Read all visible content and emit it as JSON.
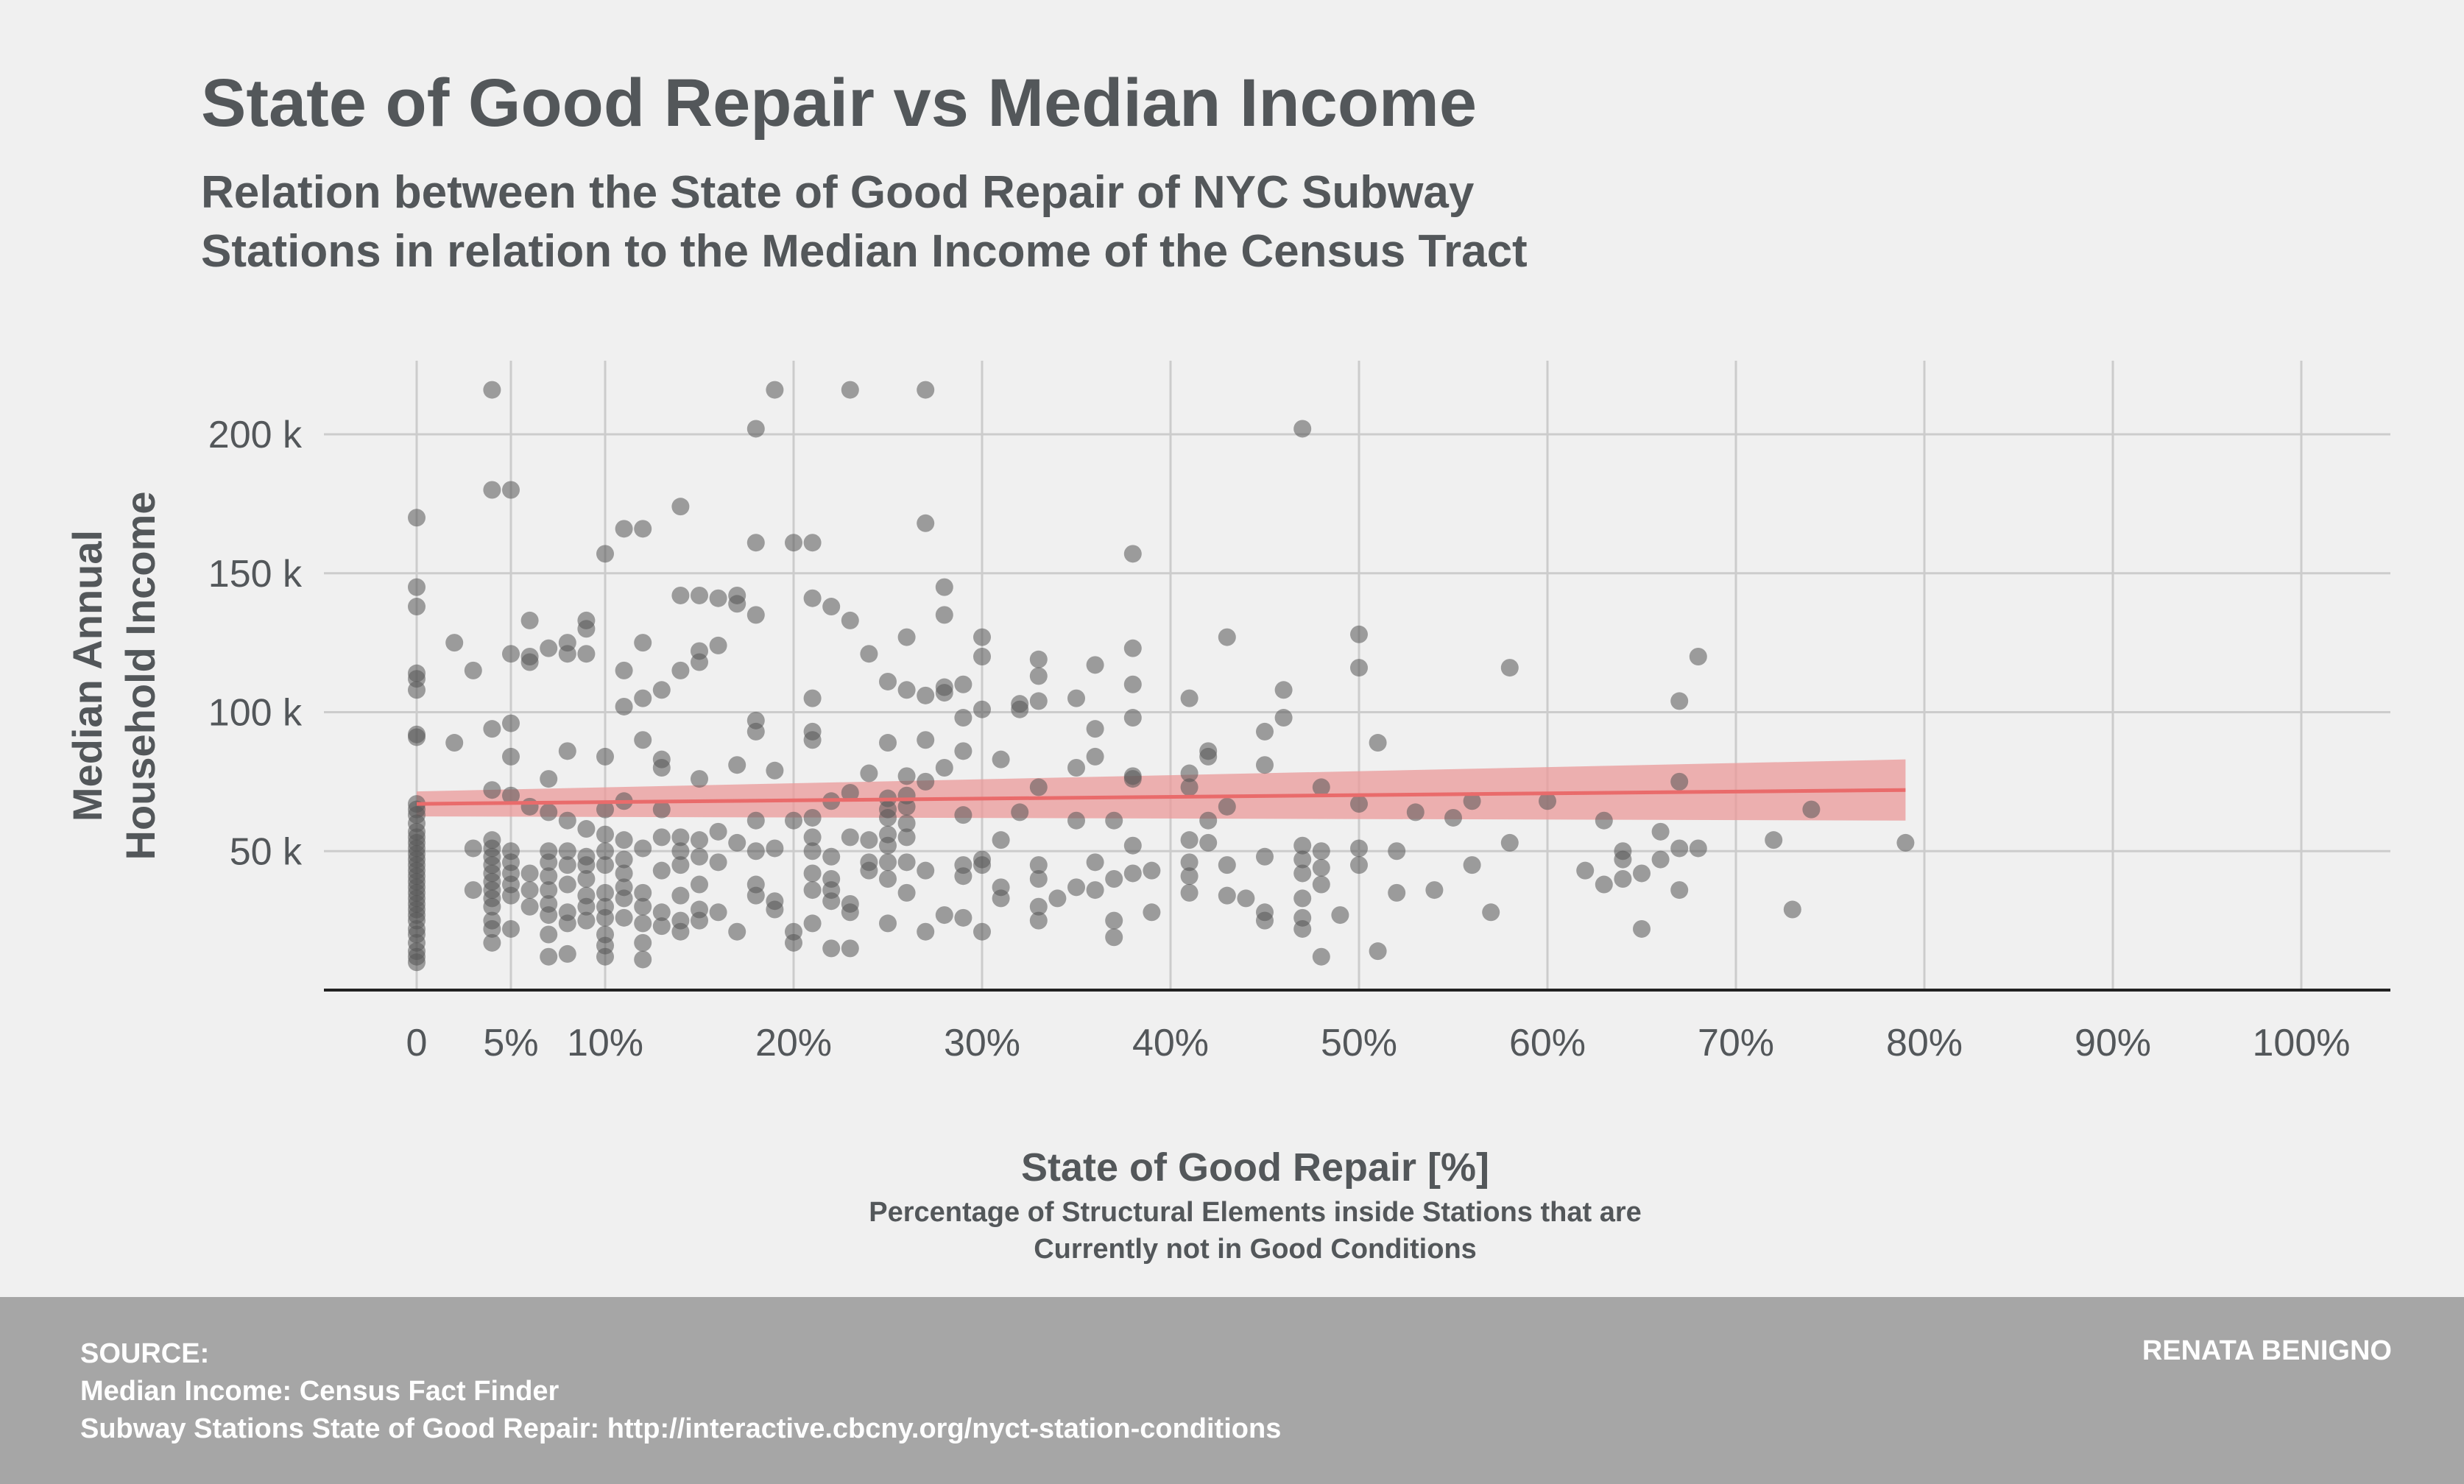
{
  "chart_data": {
    "type": "scatter",
    "title": "State of Good Repair vs Median Income",
    "subtitle_lines": [
      "Relation between the State of Good Repair of NYC Subway",
      "Stations in relation to the Median Income of the Census Tract"
    ],
    "xlabel": "State of Good Repair [%]",
    "xlabel_sub_lines": [
      "Percentage of Structural Elements inside Stations that are",
      "Currently not in Good Conditions"
    ],
    "ylabel_lines": [
      "Median Annual",
      "Household Income"
    ],
    "x_ticks": [
      {
        "value": 0,
        "label": "0"
      },
      {
        "value": 5,
        "label": "5%"
      },
      {
        "value": 10,
        "label": "10%"
      },
      {
        "value": 20,
        "label": "20%"
      },
      {
        "value": 30,
        "label": "30%"
      },
      {
        "value": 40,
        "label": "40%"
      },
      {
        "value": 50,
        "label": "50%"
      },
      {
        "value": 60,
        "label": "60%"
      },
      {
        "value": 70,
        "label": "70%"
      },
      {
        "value": 80,
        "label": "80%"
      },
      {
        "value": 90,
        "label": "90%"
      },
      {
        "value": 100,
        "label": "100%"
      }
    ],
    "y_ticks": [
      {
        "value": 50000,
        "label": "50 k"
      },
      {
        "value": 100000,
        "label": "100 k"
      },
      {
        "value": 150000,
        "label": "150 k"
      },
      {
        "value": 200000,
        "label": "200 k"
      }
    ],
    "xlim": [
      -5,
      105
    ],
    "ylim": [
      0,
      225000
    ],
    "grid": true,
    "colors": {
      "point": "#555555",
      "trend": "#e96b6b",
      "band": "#eb9a9a",
      "grid": "#cccccc",
      "axis": "#222222"
    },
    "trend": {
      "x": [
        0,
        79
      ],
      "y": [
        67000,
        72000
      ]
    },
    "confidence_band": {
      "x": [
        0,
        79
      ],
      "lower": [
        62500,
        61000
      ],
      "upper": [
        71500,
        83000
      ]
    },
    "points": [
      [
        0,
        170000
      ],
      [
        0,
        145000
      ],
      [
        0,
        138000
      ],
      [
        0,
        114000
      ],
      [
        0,
        112000
      ],
      [
        0,
        108000
      ],
      [
        0,
        92000
      ],
      [
        0,
        91000
      ],
      [
        0,
        67000
      ],
      [
        0,
        65000
      ],
      [
        0,
        63000
      ],
      [
        0,
        60000
      ],
      [
        0,
        57000
      ],
      [
        0,
        55000
      ],
      [
        0,
        53000
      ],
      [
        0,
        51000
      ],
      [
        0,
        49000
      ],
      [
        0,
        47000
      ],
      [
        0,
        45000
      ],
      [
        0,
        43000
      ],
      [
        0,
        41000
      ],
      [
        0,
        39000
      ],
      [
        0,
        37000
      ],
      [
        0,
        35000
      ],
      [
        0,
        33000
      ],
      [
        0,
        31000
      ],
      [
        0,
        29000
      ],
      [
        0,
        27000
      ],
      [
        0,
        25000
      ],
      [
        0,
        22000
      ],
      [
        0,
        20000
      ],
      [
        0,
        17000
      ],
      [
        0,
        14000
      ],
      [
        0,
        12000
      ],
      [
        0,
        10000
      ],
      [
        2,
        125000
      ],
      [
        2,
        89000
      ],
      [
        3,
        115000
      ],
      [
        3,
        51000
      ],
      [
        3,
        36000
      ],
      [
        4,
        216000
      ],
      [
        4,
        180000
      ],
      [
        4,
        94000
      ],
      [
        4,
        72000
      ],
      [
        4,
        54000
      ],
      [
        4,
        51000
      ],
      [
        4,
        48000
      ],
      [
        4,
        45000
      ],
      [
        4,
        42000
      ],
      [
        4,
        39000
      ],
      [
        4,
        36000
      ],
      [
        4,
        33000
      ],
      [
        4,
        30000
      ],
      [
        4,
        25000
      ],
      [
        4,
        22000
      ],
      [
        4,
        17000
      ],
      [
        5,
        180000
      ],
      [
        5,
        121000
      ],
      [
        5,
        96000
      ],
      [
        5,
        84000
      ],
      [
        5,
        70000
      ],
      [
        5,
        50000
      ],
      [
        5,
        46000
      ],
      [
        5,
        42000
      ],
      [
        5,
        38000
      ],
      [
        5,
        34000
      ],
      [
        5,
        22000
      ],
      [
        6,
        133000
      ],
      [
        6,
        120000
      ],
      [
        6,
        118000
      ],
      [
        6,
        66000
      ],
      [
        6,
        42000
      ],
      [
        6,
        36000
      ],
      [
        6,
        30000
      ],
      [
        7,
        123000
      ],
      [
        7,
        76000
      ],
      [
        7,
        64000
      ],
      [
        7,
        50000
      ],
      [
        7,
        46000
      ],
      [
        7,
        41000
      ],
      [
        7,
        36000
      ],
      [
        7,
        31000
      ],
      [
        7,
        27000
      ],
      [
        7,
        20000
      ],
      [
        7,
        12000
      ],
      [
        8,
        125000
      ],
      [
        8,
        121000
      ],
      [
        8,
        86000
      ],
      [
        8,
        61000
      ],
      [
        8,
        50000
      ],
      [
        8,
        45000
      ],
      [
        8,
        38000
      ],
      [
        8,
        28000
      ],
      [
        8,
        24000
      ],
      [
        8,
        13000
      ],
      [
        9,
        133000
      ],
      [
        9,
        130000
      ],
      [
        9,
        121000
      ],
      [
        9,
        58000
      ],
      [
        9,
        48000
      ],
      [
        9,
        45000
      ],
      [
        9,
        40000
      ],
      [
        9,
        34000
      ],
      [
        9,
        30000
      ],
      [
        9,
        25000
      ],
      [
        10,
        157000
      ],
      [
        10,
        84000
      ],
      [
        10,
        65000
      ],
      [
        10,
        56000
      ],
      [
        10,
        50000
      ],
      [
        10,
        45000
      ],
      [
        10,
        35000
      ],
      [
        10,
        30000
      ],
      [
        10,
        26000
      ],
      [
        10,
        20000
      ],
      [
        10,
        16000
      ],
      [
        10,
        12000
      ],
      [
        11,
        166000
      ],
      [
        11,
        115000
      ],
      [
        11,
        102000
      ],
      [
        11,
        68000
      ],
      [
        11,
        54000
      ],
      [
        11,
        47000
      ],
      [
        11,
        42000
      ],
      [
        11,
        37000
      ],
      [
        11,
        33000
      ],
      [
        11,
        26000
      ],
      [
        12,
        166000
      ],
      [
        12,
        125000
      ],
      [
        12,
        105000
      ],
      [
        12,
        90000
      ],
      [
        12,
        51000
      ],
      [
        12,
        35000
      ],
      [
        12,
        30000
      ],
      [
        12,
        24000
      ],
      [
        12,
        17000
      ],
      [
        12,
        11000
      ],
      [
        13,
        108000
      ],
      [
        13,
        83000
      ],
      [
        13,
        80000
      ],
      [
        13,
        65000
      ],
      [
        13,
        55000
      ],
      [
        13,
        43000
      ],
      [
        13,
        28000
      ],
      [
        13,
        23000
      ],
      [
        14,
        174000
      ],
      [
        14,
        142000
      ],
      [
        14,
        115000
      ],
      [
        14,
        55000
      ],
      [
        14,
        50000
      ],
      [
        14,
        45000
      ],
      [
        14,
        34000
      ],
      [
        14,
        25000
      ],
      [
        14,
        21000
      ],
      [
        15,
        142000
      ],
      [
        15,
        122000
      ],
      [
        15,
        118000
      ],
      [
        15,
        76000
      ],
      [
        15,
        54000
      ],
      [
        15,
        48000
      ],
      [
        15,
        38000
      ],
      [
        15,
        29000
      ],
      [
        15,
        25000
      ],
      [
        16,
        141000
      ],
      [
        16,
        124000
      ],
      [
        16,
        57000
      ],
      [
        16,
        46000
      ],
      [
        16,
        28000
      ],
      [
        17,
        142000
      ],
      [
        17,
        139000
      ],
      [
        17,
        81000
      ],
      [
        17,
        53000
      ],
      [
        17,
        21000
      ],
      [
        18,
        202000
      ],
      [
        18,
        161000
      ],
      [
        18,
        135000
      ],
      [
        18,
        97000
      ],
      [
        18,
        93000
      ],
      [
        18,
        61000
      ],
      [
        18,
        50000
      ],
      [
        18,
        38000
      ],
      [
        18,
        34000
      ],
      [
        19,
        216000
      ],
      [
        19,
        79000
      ],
      [
        19,
        51000
      ],
      [
        19,
        32000
      ],
      [
        19,
        29000
      ],
      [
        20,
        161000
      ],
      [
        20,
        61000
      ],
      [
        20,
        21000
      ],
      [
        20,
        17000
      ],
      [
        21,
        161000
      ],
      [
        21,
        141000
      ],
      [
        21,
        105000
      ],
      [
        21,
        93000
      ],
      [
        21,
        90000
      ],
      [
        21,
        62000
      ],
      [
        21,
        55000
      ],
      [
        21,
        50000
      ],
      [
        21,
        42000
      ],
      [
        21,
        36000
      ],
      [
        21,
        24000
      ],
      [
        22,
        138000
      ],
      [
        22,
        68000
      ],
      [
        22,
        48000
      ],
      [
        22,
        40000
      ],
      [
        22,
        36000
      ],
      [
        22,
        32000
      ],
      [
        22,
        15000
      ],
      [
        23,
        216000
      ],
      [
        23,
        133000
      ],
      [
        23,
        71000
      ],
      [
        23,
        55000
      ],
      [
        23,
        31000
      ],
      [
        23,
        28000
      ],
      [
        23,
        15000
      ],
      [
        24,
        121000
      ],
      [
        24,
        78000
      ],
      [
        24,
        54000
      ],
      [
        24,
        46000
      ],
      [
        24,
        43000
      ],
      [
        25,
        111000
      ],
      [
        25,
        89000
      ],
      [
        25,
        69000
      ],
      [
        25,
        65000
      ],
      [
        25,
        62000
      ],
      [
        25,
        56000
      ],
      [
        25,
        52000
      ],
      [
        25,
        46000
      ],
      [
        25,
        40000
      ],
      [
        25,
        24000
      ],
      [
        26,
        127000
      ],
      [
        26,
        108000
      ],
      [
        26,
        77000
      ],
      [
        26,
        70000
      ],
      [
        26,
        66000
      ],
      [
        26,
        60000
      ],
      [
        26,
        55000
      ],
      [
        26,
        46000
      ],
      [
        26,
        35000
      ],
      [
        27,
        216000
      ],
      [
        27,
        168000
      ],
      [
        27,
        106000
      ],
      [
        27,
        90000
      ],
      [
        27,
        75000
      ],
      [
        27,
        43000
      ],
      [
        27,
        21000
      ],
      [
        28,
        145000
      ],
      [
        28,
        135000
      ],
      [
        28,
        109000
      ],
      [
        28,
        107000
      ],
      [
        28,
        80000
      ],
      [
        28,
        27000
      ],
      [
        29,
        110000
      ],
      [
        29,
        98000
      ],
      [
        29,
        86000
      ],
      [
        29,
        63000
      ],
      [
        29,
        45000
      ],
      [
        29,
        41000
      ],
      [
        29,
        26000
      ],
      [
        30,
        127000
      ],
      [
        30,
        120000
      ],
      [
        30,
        101000
      ],
      [
        30,
        47000
      ],
      [
        30,
        45000
      ],
      [
        30,
        21000
      ],
      [
        31,
        83000
      ],
      [
        31,
        54000
      ],
      [
        31,
        37000
      ],
      [
        31,
        33000
      ],
      [
        32,
        103000
      ],
      [
        32,
        101000
      ],
      [
        32,
        64000
      ],
      [
        33,
        119000
      ],
      [
        33,
        113000
      ],
      [
        33,
        104000
      ],
      [
        33,
        73000
      ],
      [
        33,
        45000
      ],
      [
        33,
        40000
      ],
      [
        33,
        30000
      ],
      [
        33,
        25000
      ],
      [
        34,
        33000
      ],
      [
        35,
        105000
      ],
      [
        35,
        80000
      ],
      [
        35,
        61000
      ],
      [
        35,
        37000
      ],
      [
        36,
        117000
      ],
      [
        36,
        94000
      ],
      [
        36,
        84000
      ],
      [
        36,
        46000
      ],
      [
        36,
        36000
      ],
      [
        37,
        61000
      ],
      [
        37,
        40000
      ],
      [
        37,
        25000
      ],
      [
        37,
        19000
      ],
      [
        38,
        157000
      ],
      [
        38,
        123000
      ],
      [
        38,
        110000
      ],
      [
        38,
        98000
      ],
      [
        38,
        77000
      ],
      [
        38,
        76000
      ],
      [
        38,
        52000
      ],
      [
        38,
        42000
      ],
      [
        39,
        43000
      ],
      [
        39,
        28000
      ],
      [
        41,
        105000
      ],
      [
        41,
        78000
      ],
      [
        41,
        73000
      ],
      [
        41,
        54000
      ],
      [
        41,
        46000
      ],
      [
        41,
        41000
      ],
      [
        41,
        35000
      ],
      [
        42,
        86000
      ],
      [
        42,
        84000
      ],
      [
        42,
        61000
      ],
      [
        42,
        53000
      ],
      [
        43,
        127000
      ],
      [
        43,
        66000
      ],
      [
        43,
        45000
      ],
      [
        43,
        34000
      ],
      [
        44,
        33000
      ],
      [
        45,
        93000
      ],
      [
        45,
        81000
      ],
      [
        45,
        48000
      ],
      [
        45,
        28000
      ],
      [
        45,
        25000
      ],
      [
        46,
        108000
      ],
      [
        46,
        98000
      ],
      [
        47,
        202000
      ],
      [
        47,
        52000
      ],
      [
        47,
        47000
      ],
      [
        47,
        42000
      ],
      [
        47,
        33000
      ],
      [
        47,
        26000
      ],
      [
        47,
        22000
      ],
      [
        48,
        73000
      ],
      [
        48,
        50000
      ],
      [
        48,
        44000
      ],
      [
        48,
        38000
      ],
      [
        48,
        12000
      ],
      [
        49,
        27000
      ],
      [
        50,
        128000
      ],
      [
        50,
        116000
      ],
      [
        50,
        67000
      ],
      [
        50,
        51000
      ],
      [
        50,
        45000
      ],
      [
        51,
        89000
      ],
      [
        51,
        14000
      ],
      [
        52,
        50000
      ],
      [
        52,
        35000
      ],
      [
        53,
        64000
      ],
      [
        54,
        36000
      ],
      [
        55,
        62000
      ],
      [
        56,
        68000
      ],
      [
        56,
        45000
      ],
      [
        57,
        28000
      ],
      [
        58,
        116000
      ],
      [
        58,
        53000
      ],
      [
        60,
        68000
      ],
      [
        62,
        43000
      ],
      [
        63,
        61000
      ],
      [
        63,
        38000
      ],
      [
        64,
        50000
      ],
      [
        64,
        47000
      ],
      [
        64,
        40000
      ],
      [
        65,
        42000
      ],
      [
        65,
        22000
      ],
      [
        66,
        57000
      ],
      [
        66,
        47000
      ],
      [
        67,
        104000
      ],
      [
        67,
        75000
      ],
      [
        67,
        51000
      ],
      [
        67,
        36000
      ],
      [
        68,
        120000
      ],
      [
        68,
        51000
      ],
      [
        72,
        54000
      ],
      [
        73,
        29000
      ],
      [
        74,
        65000
      ],
      [
        79,
        53000
      ]
    ]
  },
  "footer": {
    "source_heading": "SOURCE:",
    "source_line_1": "Median Income: Census Fact Finder",
    "source_line_2": "Subway Stations State of Good Repair: http://interactive.cbcny.org/nyct-station-conditions",
    "author": "RENATA BENIGNO"
  }
}
